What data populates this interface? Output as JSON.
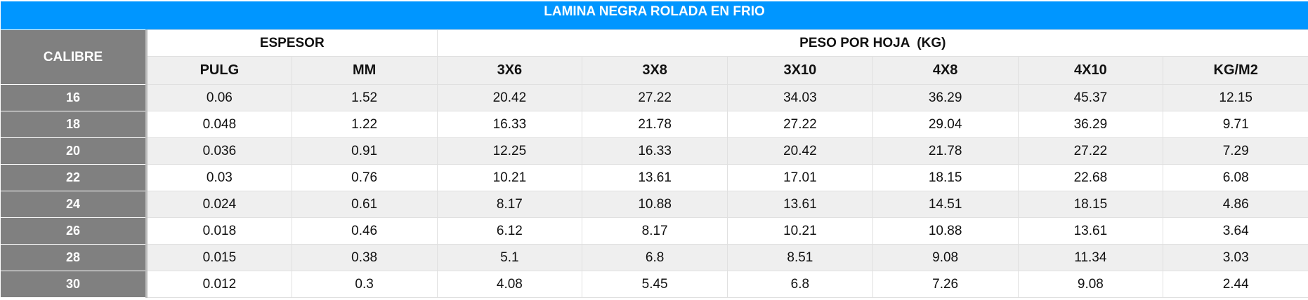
{
  "title": "LAMINA NEGRA ROLADA EN FRIO",
  "header": {
    "calibre": "CALIBRE",
    "espesor": "ESPESOR",
    "peso": "PESO POR HOJA  (KG)",
    "columns": [
      "PULG",
      "MM",
      "3X6",
      "3X8",
      "3X10",
      "4X8",
      "4X10",
      "KG/M2"
    ]
  },
  "table": {
    "rows": [
      [
        "16",
        "0.06",
        "1.52",
        "20.42",
        "27.22",
        "34.03",
        "36.29",
        "45.37",
        "12.15"
      ],
      [
        "18",
        "0.048",
        "1.22",
        "16.33",
        "21.78",
        "27.22",
        "29.04",
        "36.29",
        "9.71"
      ],
      [
        "20",
        "0.036",
        "0.91",
        "12.25",
        "16.33",
        "20.42",
        "21.78",
        "27.22",
        "7.29"
      ],
      [
        "22",
        "0.03",
        "0.76",
        "10.21",
        "13.61",
        "17.01",
        "18.15",
        "22.68",
        "6.08"
      ],
      [
        "24",
        "0.024",
        "0.61",
        "8.17",
        "10.88",
        "13.61",
        "14.51",
        "18.15",
        "4.86"
      ],
      [
        "26",
        "0.018",
        "0.46",
        "6.12",
        "8.17",
        "10.21",
        "10.88",
        "13.61",
        "3.64"
      ],
      [
        "28",
        "0.015",
        "0.38",
        "5.1",
        "6.8",
        "8.51",
        "9.08",
        "11.34",
        "3.03"
      ],
      [
        "30",
        "0.012",
        "0.3",
        "4.08",
        "5.45",
        "6.8",
        "7.26",
        "9.08",
        "2.44"
      ]
    ]
  }
}
